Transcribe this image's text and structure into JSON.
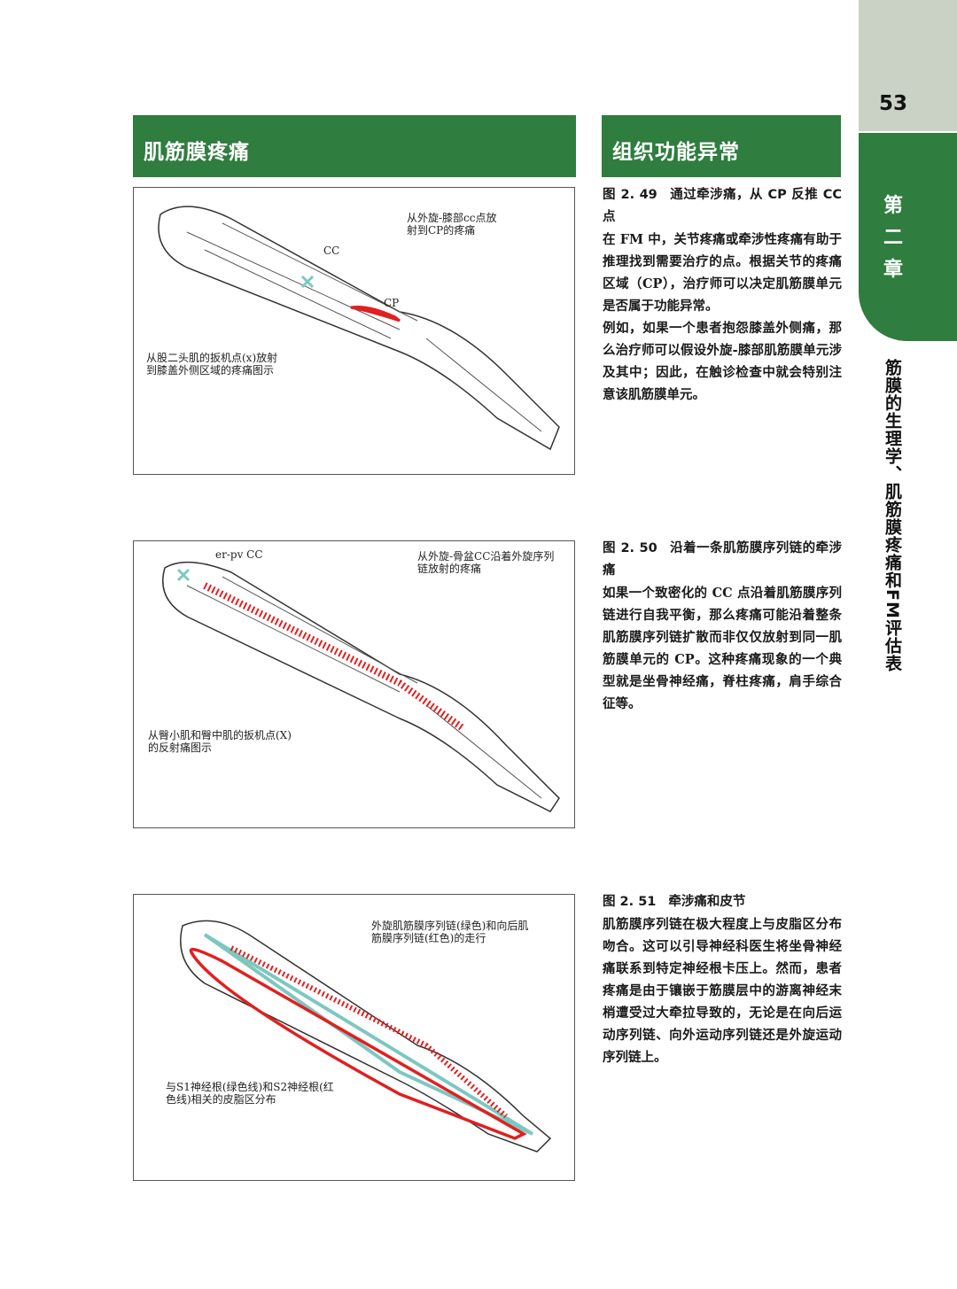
{
  "page_number": "53",
  "sidebar": {
    "chapter": [
      "第",
      "二",
      "章"
    ],
    "chapter_title": "筋膜的生理学、肌筋膜疼痛和FM评估表"
  },
  "headers": {
    "left": "肌筋膜疼痛",
    "right": "组织功能异常"
  },
  "figures": [
    {
      "labels": {
        "cc": "CC",
        "cp": "CP",
        "top_right": "从外旋-膝部cc点放射到CP的疼痛",
        "bottom_left": "从股二头肌的扳机点(x)放射到膝盖外侧区域的疼痛图示"
      }
    },
    {
      "labels": {
        "top_left": "er-pv CC",
        "top_right": "从外旋-骨盆CC沿着外旋序列链放射的疼痛",
        "bottom_left": "从臀小肌和臀中肌的扳机点(X)的反射痛图示"
      }
    },
    {
      "labels": {
        "top_right": "外旋肌筋膜序列链(绿色)和向后肌筋膜序列链(红色)的走行",
        "bottom_left": "与S1神经根(绿色线)和S2神经根(红色线)相关的皮脂区分布"
      }
    }
  ],
  "sections": [
    {
      "fig_num": "图 2. 49",
      "caption": "通过牵涉痛，从 CP 反推 CC 点",
      "paragraphs": [
        "在 FM 中，关节疼痛或牵涉性疼痛有助于推理找到需要治疗的点。根据关节的疼痛区域（CP），治疗师可以决定肌筋膜单元是否属于功能异常。",
        "例如，如果一个患者抱怨膝盖外侧痛，那么治疗师可以假设外旋-膝部肌筋膜单元涉及其中；因此，在触诊检查中就会特别注意该肌筋膜单元。"
      ]
    },
    {
      "fig_num": "图 2. 50",
      "caption": "沿着一条肌筋膜序列链的牵涉痛",
      "paragraphs": [
        "如果一个致密化的 CC 点沿着肌筋膜序列链进行自我平衡，那么疼痛可能沿着整条肌筋膜序列链扩散而非仅仅放射到同一肌筋膜单元的 CP。这种疼痛现象的一个典型就是坐骨神经痛，脊柱疼痛，肩手综合征等。"
      ]
    },
    {
      "fig_num": "图 2. 51",
      "caption": "牵涉痛和皮节",
      "paragraphs": [
        "肌筋膜序列链在极大程度上与皮脂区分布吻合。这可以引导神经科医生将坐骨神经痛联系到特定神经根卡压上。然而，患者疼痛是由于镶嵌于筋膜层中的游离神经末梢遭受过大牵拉导致的，无论是在向后运动序列链、向外运动序列链还是外旋运动序列链上。"
      ]
    }
  ],
  "colors": {
    "green": "#2f7d3f",
    "sidebar_gray": "#c9d2c4",
    "pain_red": "#e02020",
    "line_teal": "#7cc8c0"
  }
}
